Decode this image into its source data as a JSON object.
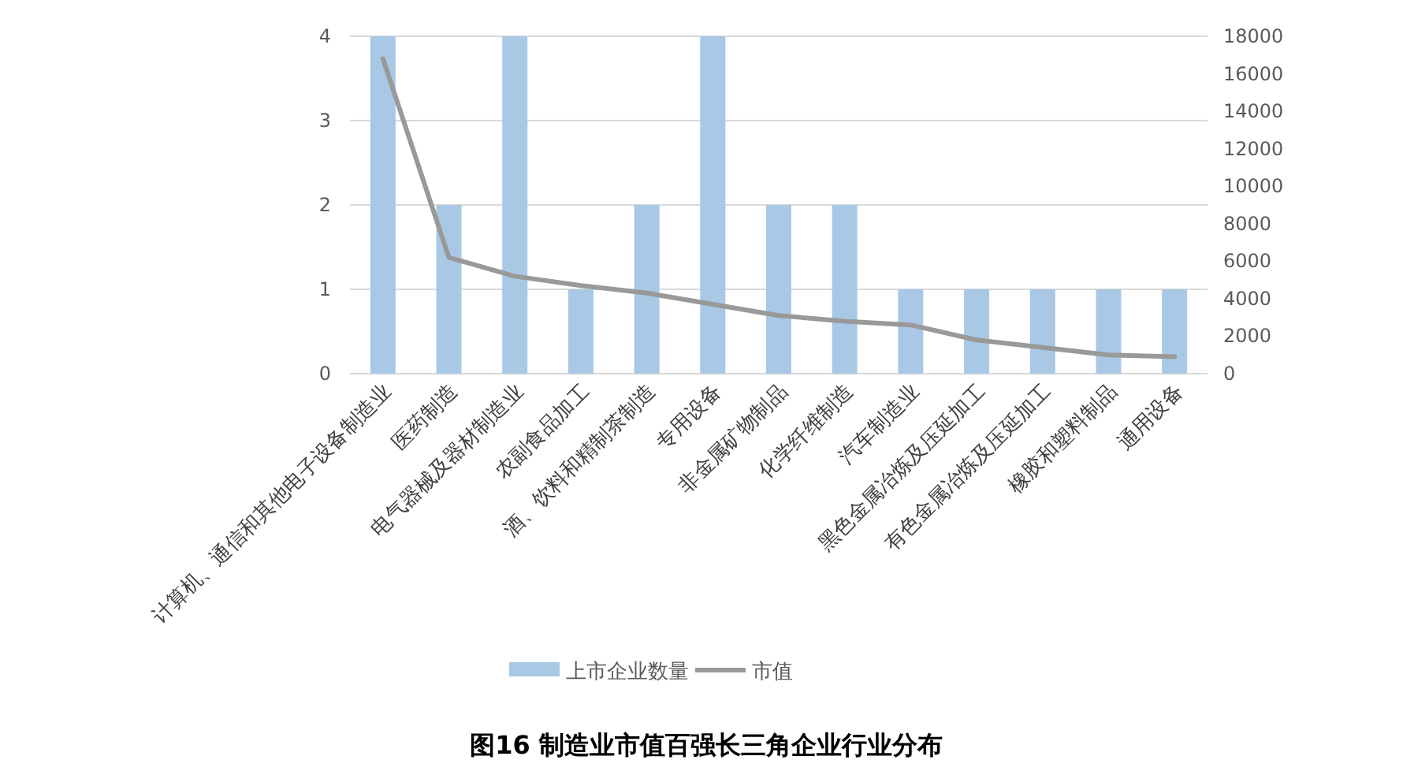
{
  "chart_data": {
    "type": "bar",
    "title": "图16 制造业市值百强长三角企业行业分布",
    "categories": [
      "计算机、通信和其他电子设备制造业",
      "医药制造",
      "电气器械及器材制造业",
      "农副食品加工",
      "酒、饮料和精制茶制造",
      "专用设备",
      "非金属矿物制品",
      "化学纤维制造",
      "汽车制造业",
      "黑色金属冶炼及压延加工",
      "有色金属冶炼及压延加工",
      "橡胶和塑料制品",
      "通用设备"
    ],
    "series": [
      {
        "name": "上市企业数量",
        "color": "#a9c8e6",
        "values": [
          4,
          2,
          4,
          1,
          2,
          4,
          2,
          2,
          1,
          1,
          1,
          1,
          1
        ]
      },
      {
        "name": "市值",
        "type": "line",
        "axis": "y2",
        "color": "#999999",
        "values": [
          16800,
          6200,
          5200,
          4700,
          4300,
          3700,
          3100,
          2800,
          2600,
          1800,
          1400,
          1000,
          900
        ]
      }
    ],
    "ylim": [
      0,
      4
    ],
    "yticks": [
      0,
      1,
      2,
      3,
      4
    ],
    "y2lim": [
      0,
      18000
    ],
    "y2ticks": [
      0,
      2000,
      4000,
      6000,
      8000,
      10000,
      12000,
      14000,
      16000,
      18000
    ],
    "grid": "y",
    "legend": "bottom"
  }
}
